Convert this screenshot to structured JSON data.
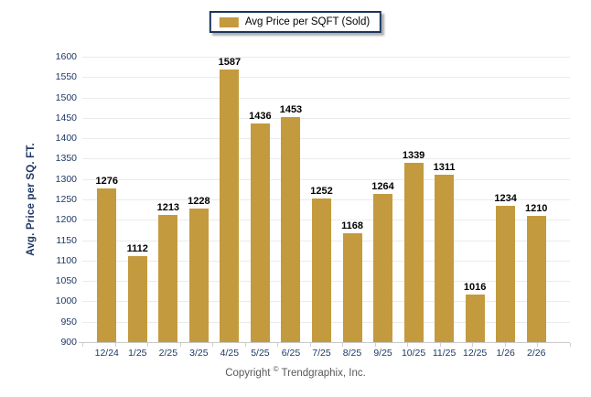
{
  "legend": {
    "label": "Avg Price per SQFT (Sold)"
  },
  "y_axis": {
    "title": "Avg. Price per SQ. FT."
  },
  "footer": {
    "prefix": "Copyright",
    "symbol": "©",
    "company": "Trendgraphix, Inc."
  },
  "colors": {
    "bar": "#C49A3E",
    "axis_text": "#1F3864",
    "value_label": "#000000",
    "legend_border": "#17375E",
    "gridline": "#EBEBEB",
    "copyright": "#595959"
  },
  "chart_data": {
    "type": "bar",
    "title": "Avg Price per SQFT (Sold)",
    "categories": [
      "12/24",
      "1/25",
      "2/25",
      "3/25",
      "4/25",
      "5/25",
      "6/25",
      "7/25",
      "8/25",
      "9/25",
      "10/25",
      "11/25",
      "12/25",
      "1/26",
      "2/26"
    ],
    "values": [
      1276,
      1112,
      1213,
      1228,
      1587,
      1436,
      1453,
      1252,
      1168,
      1264,
      1339,
      1311,
      1016,
      1234,
      1210
    ],
    "xlabel": "",
    "ylabel": "Avg. Price per SQ. FT.",
    "ylim": [
      900,
      1600
    ],
    "ytick_step": 50,
    "grid": true,
    "legend_position": "top-center",
    "bar_value_labels": true
  }
}
